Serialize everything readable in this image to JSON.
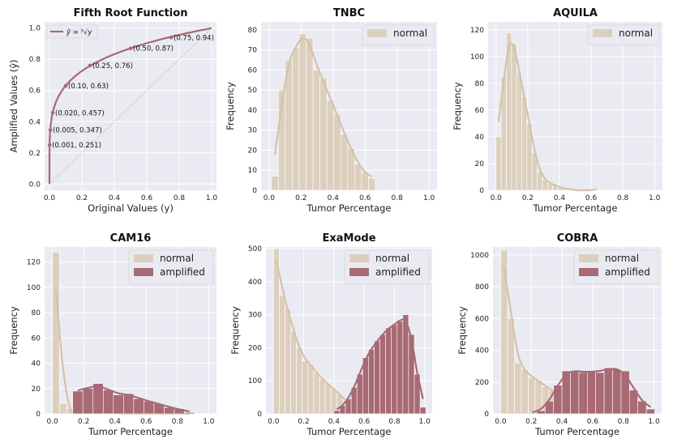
{
  "colors": {
    "normal": "#ddcfbe",
    "normal_line": "#d4c2ac",
    "amplified": "#a86a74",
    "amplified_line": "#a86a74",
    "plot_bg": "#eaeaf2",
    "grid": "#ffffff",
    "diagonal": "#aaaaaa"
  },
  "chart_data": [
    {
      "id": "fifth_root",
      "type": "line",
      "title": "Fifth Root Function",
      "xlabel": "Original Values (y)",
      "ylabel": "Amplified Values (ŷ)",
      "xlim": [
        -0.03,
        1.03
      ],
      "ylim": [
        -0.04,
        1.04
      ],
      "xticks": [
        0.0,
        0.2,
        0.4,
        0.6,
        0.8,
        1.0
      ],
      "yticks": [
        0.0,
        0.2,
        0.4,
        0.6,
        0.8,
        1.0
      ],
      "xtick_labels": [
        "0.0",
        "0.2",
        "0.4",
        "0.6",
        "0.8",
        "1.0"
      ],
      "ytick_labels": [
        "0.0",
        "0.2",
        "0.4",
        "0.6",
        "0.8",
        "1.0"
      ],
      "legend": [
        "ŷ = ⁵√y"
      ],
      "points": [
        {
          "x": 0.001,
          "y": 0.251,
          "label": "(0.001, 0.251)"
        },
        {
          "x": 0.005,
          "y": 0.347,
          "label": "(0.005, 0.347)"
        },
        {
          "x": 0.02,
          "y": 0.457,
          "label": "(0.020, 0.457)"
        },
        {
          "x": 0.1,
          "y": 0.63,
          "label": "(0.10, 0.63)"
        },
        {
          "x": 0.25,
          "y": 0.76,
          "label": "(0.25, 0.76)"
        },
        {
          "x": 0.5,
          "y": 0.87,
          "label": "(0.50, 0.87)"
        },
        {
          "x": 0.75,
          "y": 0.94,
          "label": "(0.75, 0.94)"
        }
      ]
    },
    {
      "id": "tnbc",
      "type": "bar",
      "title": "TNBC",
      "xlabel": "Tumor Percentage",
      "ylabel": "Frequency",
      "xlim": [
        -0.05,
        1.05
      ],
      "ylim": [
        0,
        84
      ],
      "xticks": [
        0.0,
        0.2,
        0.4,
        0.6,
        0.8,
        1.0
      ],
      "yticks": [
        0,
        10,
        20,
        30,
        40,
        50,
        60,
        70,
        80
      ],
      "xtick_labels": [
        "0.0",
        "0.2",
        "0.4",
        "0.6",
        "0.8",
        "1.0"
      ],
      "ytick_labels": [
        "0",
        "10",
        "20",
        "30",
        "40",
        "50",
        "60",
        "70",
        "80"
      ],
      "legend": [
        "normal"
      ],
      "series": [
        {
          "name": "normal",
          "color_key": "normal",
          "bin_start": 0.015,
          "bin_width": 0.0433,
          "values": [
            7,
            50,
            65,
            71,
            78,
            76,
            60,
            56,
            45,
            38,
            28,
            21,
            13,
            9,
            6
          ]
        }
      ]
    },
    {
      "id": "aquila",
      "type": "bar",
      "title": "AQUILA",
      "xlabel": "Tumor Percentage",
      "ylabel": "Frequency",
      "xlim": [
        -0.05,
        1.05
      ],
      "ylim": [
        0,
        126
      ],
      "xticks": [
        0.0,
        0.2,
        0.4,
        0.6,
        0.8,
        1.0
      ],
      "yticks": [
        0,
        20,
        40,
        60,
        80,
        100,
        120
      ],
      "xtick_labels": [
        "0.0",
        "0.2",
        "0.4",
        "0.6",
        "0.8",
        "1.0"
      ],
      "ytick_labels": [
        "0",
        "20",
        "40",
        "60",
        "80",
        "100",
        "120"
      ],
      "legend": [
        "normal"
      ],
      "series": [
        {
          "name": "normal",
          "color_key": "normal",
          "bin_start": 0.0,
          "bin_width": 0.0325,
          "values": [
            40,
            85,
            118,
            110,
            88,
            70,
            50,
            28,
            14,
            8,
            5,
            4,
            2,
            1,
            1,
            0,
            0,
            0,
            0,
            1
          ]
        }
      ]
    },
    {
      "id": "cam16",
      "type": "bar",
      "title": "CAM16",
      "xlabel": "Tumor Percentage",
      "ylabel": "Frequency",
      "xlim": [
        -0.05,
        1.05
      ],
      "ylim": [
        0,
        132
      ],
      "xticks": [
        0.0,
        0.2,
        0.4,
        0.6,
        0.8,
        1.0
      ],
      "yticks": [
        0,
        20,
        40,
        60,
        80,
        100,
        120
      ],
      "xtick_labels": [
        "0.0",
        "0.2",
        "0.4",
        "0.6",
        "0.8",
        "1.0"
      ],
      "ytick_labels": [
        "0",
        "20",
        "40",
        "60",
        "80",
        "100",
        "120"
      ],
      "legend": [
        "normal",
        "amplified"
      ],
      "series": [
        {
          "name": "normal",
          "color_key": "normal",
          "bin_start": 0.0,
          "bin_width": 0.045,
          "values": [
            128,
            8,
            4,
            3,
            2,
            1,
            1,
            1,
            1,
            0,
            0,
            0,
            0,
            0,
            0,
            0,
            0,
            0,
            0,
            0
          ]
        },
        {
          "name": "amplified",
          "color_key": "amplified",
          "bin_start": 0.13,
          "bin_width": 0.065,
          "values": [
            18,
            20,
            24,
            19,
            15,
            16,
            12,
            10,
            8,
            5,
            4,
            1
          ]
        }
      ]
    },
    {
      "id": "examode",
      "type": "bar",
      "title": "ExaMode",
      "xlabel": "Tumor Percentage",
      "ylabel": "Frequency",
      "xlim": [
        -0.05,
        1.05
      ],
      "ylim": [
        0,
        505
      ],
      "xticks": [
        0.0,
        0.2,
        0.4,
        0.6,
        0.8,
        1.0
      ],
      "yticks": [
        0,
        100,
        200,
        300,
        400,
        500
      ],
      "xtick_labels": [
        "0.0",
        "0.2",
        "0.4",
        "0.6",
        "0.8",
        "1.0"
      ],
      "ytick_labels": [
        "0",
        "100",
        "200",
        "300",
        "400",
        "500"
      ],
      "legend": [
        "normal",
        "amplified"
      ],
      "series": [
        {
          "name": "normal",
          "color_key": "normal",
          "bin_start": 0.0,
          "bin_width": 0.038,
          "values": [
            500,
            360,
            320,
            250,
            200,
            160,
            150,
            125,
            105,
            90,
            75,
            60,
            40,
            30,
            25,
            20,
            15,
            10,
            8,
            6,
            4,
            2
          ]
        },
        {
          "name": "amplified",
          "color_key": "amplified",
          "bin_start": 0.4,
          "bin_width": 0.038,
          "values": [
            10,
            25,
            45,
            80,
            120,
            170,
            195,
            220,
            240,
            260,
            270,
            280,
            300,
            240,
            120,
            20
          ]
        }
      ]
    },
    {
      "id": "cobra",
      "type": "bar",
      "title": "COBRA",
      "xlabel": "Tumor Percentage",
      "ylabel": "Frequency",
      "xlim": [
        -0.05,
        1.05
      ],
      "ylim": [
        0,
        1050
      ],
      "xticks": [
        0.0,
        0.2,
        0.4,
        0.6,
        0.8,
        1.0
      ],
      "yticks": [
        0,
        200,
        400,
        600,
        800,
        1000
      ],
      "xtick_labels": [
        "0.0",
        "0.2",
        "0.4",
        "0.6",
        "0.8",
        "1.0"
      ],
      "ytick_labels": [
        "0",
        "200",
        "400",
        "600",
        "800",
        "1000"
      ],
      "legend": [
        "normal",
        "amplified"
      ],
      "series": [
        {
          "name": "normal",
          "color_key": "normal",
          "bin_start": 0.0,
          "bin_width": 0.045,
          "values": [
            1030,
            600,
            320,
            280,
            230,
            210,
            170,
            150,
            120,
            100,
            80,
            60,
            40,
            30,
            20,
            15,
            10,
            5,
            3,
            1
          ]
        },
        {
          "name": "amplified",
          "color_key": "amplified",
          "bin_start": 0.18,
          "bin_width": 0.055,
          "values": [
            5,
            20,
            80,
            180,
            270,
            270,
            260,
            270,
            260,
            290,
            280,
            270,
            150,
            80,
            30
          ]
        }
      ]
    }
  ]
}
